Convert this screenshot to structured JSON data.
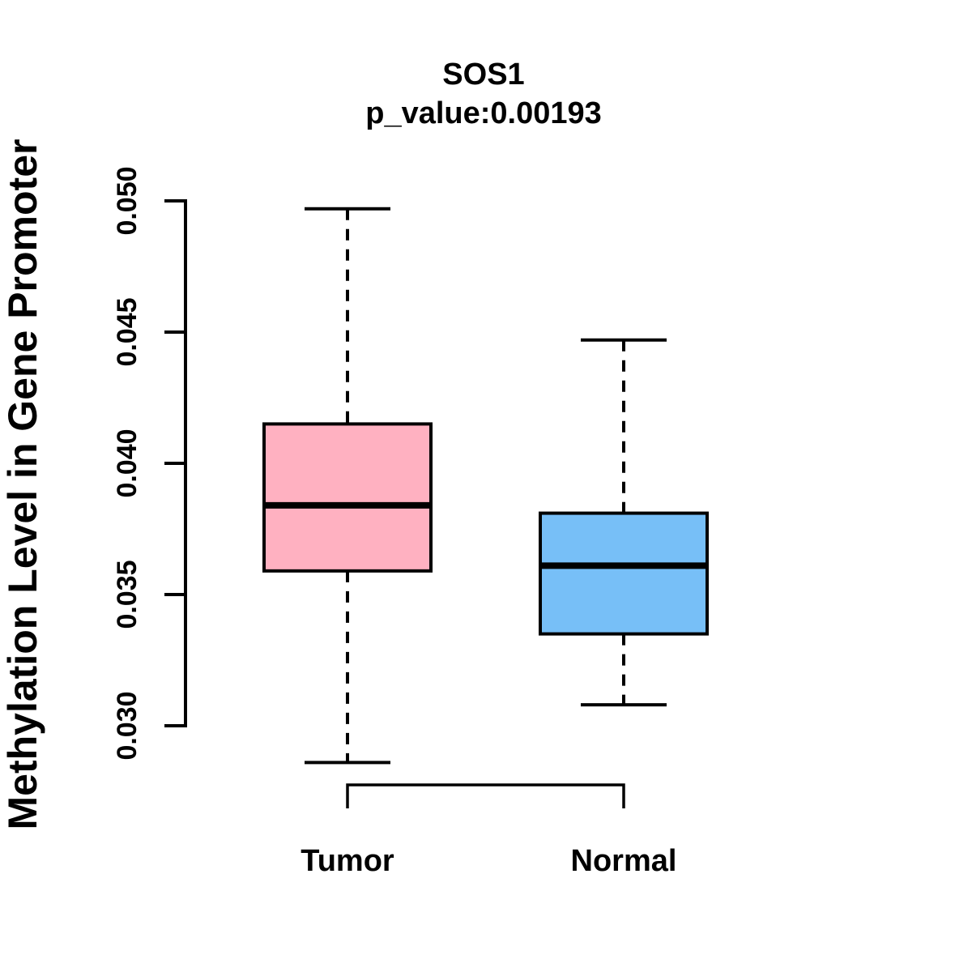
{
  "header": {
    "title": "SOS1",
    "subtitle": "p_value:0.00193"
  },
  "chart_data": {
    "type": "boxplot",
    "title": "SOS1",
    "subtitle": "p_value:0.00193",
    "p_value": 0.00193,
    "ylabel": "Methylation Level in Gene Promoter",
    "xlabel": "",
    "ylim": [
      0.03,
      0.05
    ],
    "grid": false,
    "legend": "none",
    "categories": [
      "Tumor",
      "Normal"
    ],
    "y_ticks": [
      {
        "value": 0.03,
        "label": "0.030"
      },
      {
        "value": 0.035,
        "label": "0.035"
      },
      {
        "value": 0.04,
        "label": "0.040"
      },
      {
        "value": 0.045,
        "label": "0.045"
      },
      {
        "value": 0.05,
        "label": "0.050"
      }
    ],
    "series": [
      {
        "name": "Tumor",
        "color": "#FFB1C1",
        "whisker_low": 0.0286,
        "q1": 0.0359,
        "median": 0.0384,
        "q3": 0.0415,
        "whisker_high": 0.0497
      },
      {
        "name": "Normal",
        "color": "#77BFF7",
        "whisker_low": 0.0308,
        "q1": 0.0335,
        "median": 0.0361,
        "q3": 0.0381,
        "whisker_high": 0.0447
      }
    ],
    "colors": {
      "tumor_fill": "#FFB1C1",
      "normal_fill": "#77BFF7",
      "line": "#000000",
      "background": "#FFFFFF"
    }
  }
}
